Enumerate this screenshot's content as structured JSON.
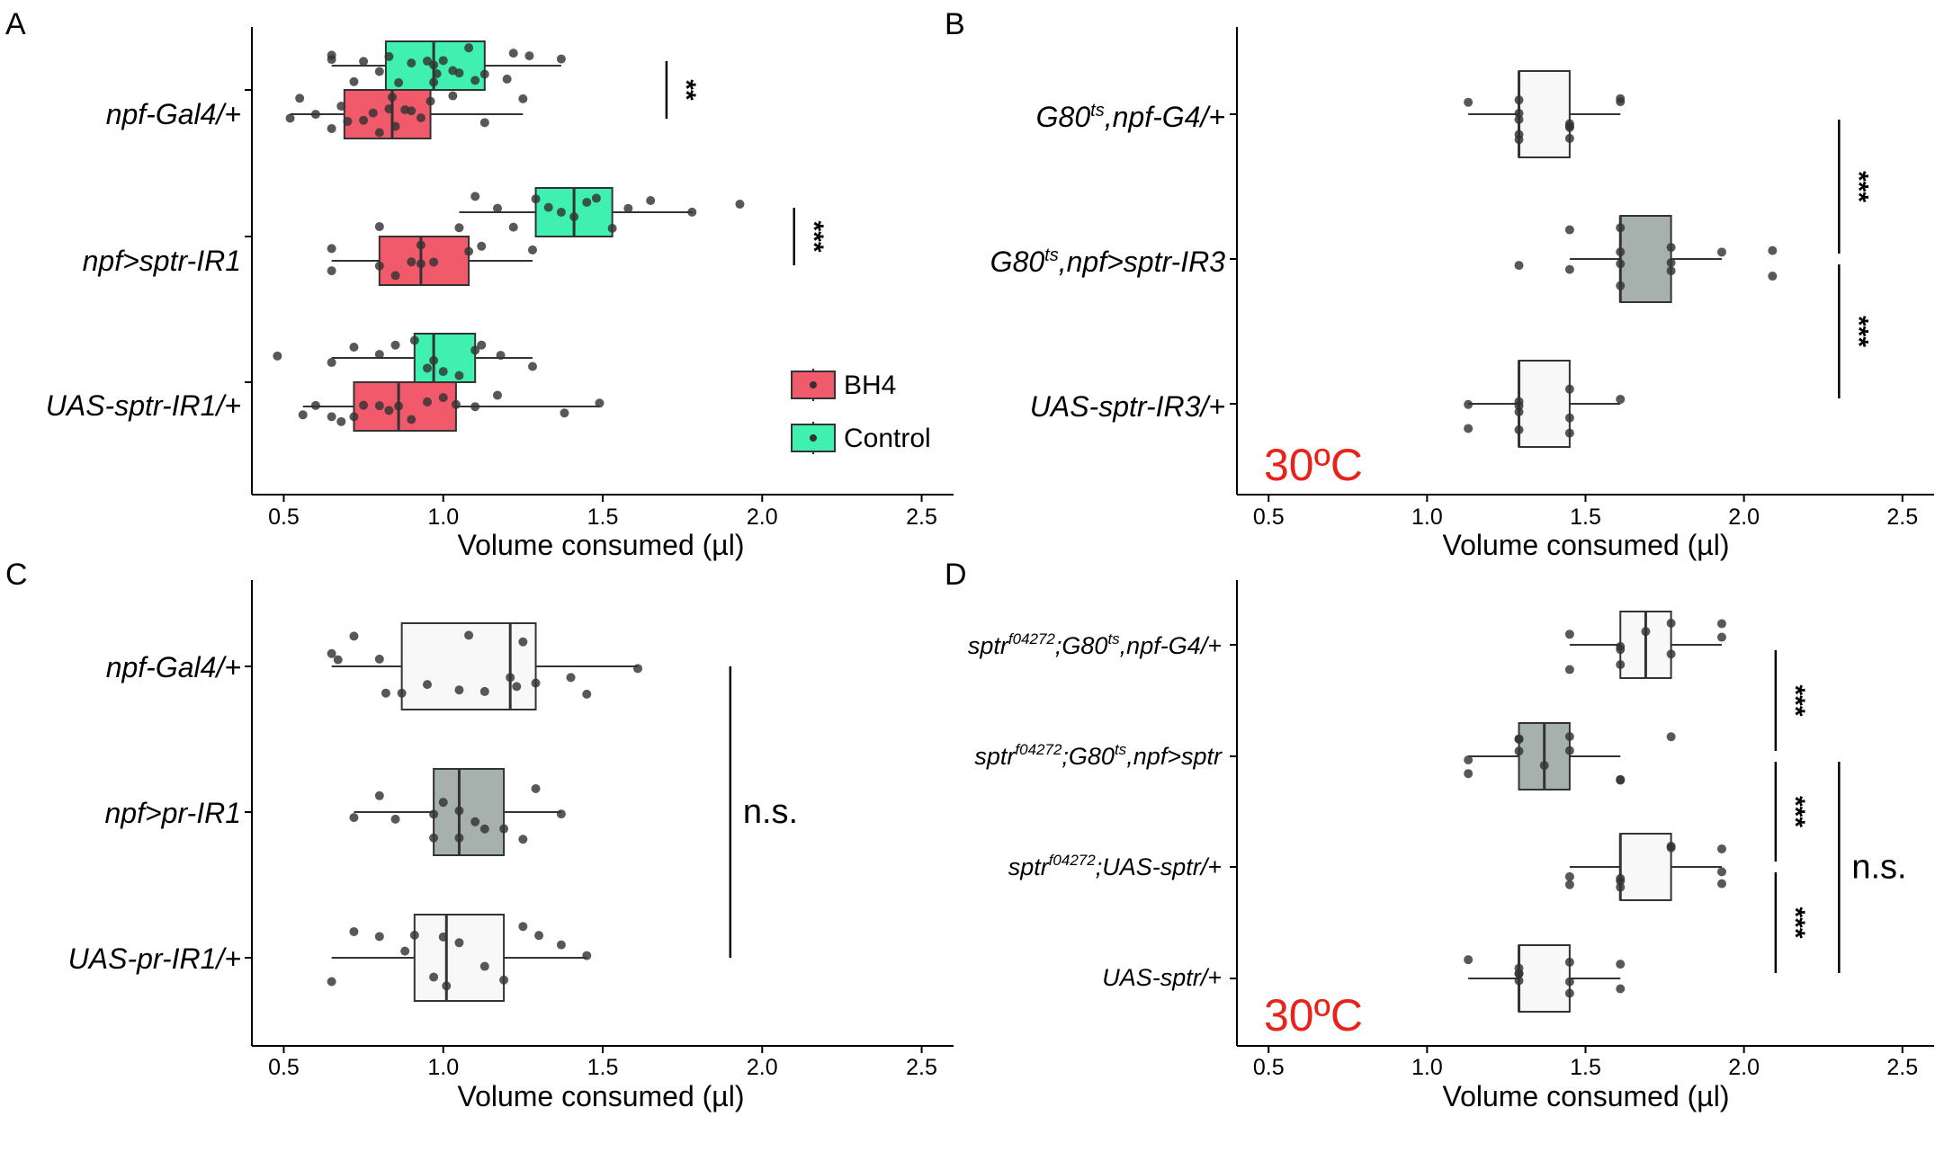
{
  "colors": {
    "bh4": "#f05a6b",
    "control": "#3ff0b0",
    "white_box": "#f8f8f8",
    "grey_box": "#a6b0ad",
    "temp_text": "#e8231a",
    "point": "#333333"
  },
  "chart_data": [
    {
      "panel": "A",
      "type": "box",
      "xlabel": "Volume consumed (µl)",
      "xlim": [
        0.4,
        2.6
      ],
      "xticks": [
        0.5,
        1.0,
        1.5,
        2.0,
        2.5
      ],
      "xtick_labels": [
        "0.5",
        "1.0",
        "1.5",
        "2.0",
        "2.5"
      ],
      "categories": [
        "npf-Gal4/+",
        "npf>sptr-IR1",
        "UAS-sptr-IR1/+"
      ],
      "legend": {
        "position": "right",
        "entries": [
          "BH4",
          "Control"
        ]
      },
      "boxes": [
        {
          "category": 0,
          "group": "Control",
          "min": 0.65,
          "q1": 0.82,
          "median": 0.97,
          "q3": 1.13,
          "max": 1.37,
          "points": [
            0.65,
            0.65,
            0.72,
            0.75,
            0.8,
            0.83,
            0.86,
            0.9,
            0.95,
            0.97,
            0.97,
            0.98,
            1.0,
            1.03,
            1.05,
            1.08,
            1.1,
            1.13,
            1.2,
            1.22,
            1.27,
            1.37
          ]
        },
        {
          "category": 0,
          "group": "BH4",
          "min": 0.52,
          "q1": 0.69,
          "median": 0.84,
          "q3": 0.96,
          "max": 1.25,
          "points": [
            0.52,
            0.55,
            0.6,
            0.65,
            0.68,
            0.7,
            0.75,
            0.78,
            0.8,
            0.83,
            0.84,
            0.85,
            0.88,
            0.9,
            0.93,
            0.96,
            1.03,
            1.13,
            1.25
          ]
        },
        {
          "category": 1,
          "group": "Control",
          "min": 1.05,
          "q1": 1.29,
          "median": 1.41,
          "q3": 1.53,
          "max": 1.78,
          "points": [
            0.8,
            1.05,
            1.1,
            1.17,
            1.22,
            1.29,
            1.33,
            1.37,
            1.41,
            1.45,
            1.48,
            1.53,
            1.58,
            1.65,
            1.78,
            1.93
          ]
        },
        {
          "category": 1,
          "group": "BH4",
          "min": 0.65,
          "q1": 0.8,
          "median": 0.93,
          "q3": 1.08,
          "max": 1.28,
          "points": [
            0.65,
            0.65,
            0.8,
            0.85,
            0.9,
            0.93,
            0.93,
            0.97,
            1.08,
            1.12,
            1.28
          ]
        },
        {
          "category": 2,
          "group": "Control",
          "min": 0.65,
          "q1": 0.91,
          "median": 0.97,
          "q3": 1.1,
          "max": 1.28,
          "points": [
            0.48,
            0.65,
            0.72,
            0.8,
            0.85,
            0.91,
            0.95,
            0.97,
            1.0,
            1.05,
            1.1,
            1.12,
            1.18,
            1.28
          ]
        },
        {
          "category": 2,
          "group": "BH4",
          "min": 0.56,
          "q1": 0.72,
          "median": 0.86,
          "q3": 1.04,
          "max": 1.49,
          "points": [
            0.56,
            0.6,
            0.65,
            0.68,
            0.72,
            0.75,
            0.8,
            0.83,
            0.86,
            0.9,
            0.95,
            1.0,
            1.04,
            1.1,
            1.17,
            1.38,
            1.49
          ]
        }
      ],
      "annotations": [
        {
          "text": "**",
          "x": 1.7,
          "between": [
            0,
            0
          ]
        },
        {
          "text": "***",
          "x": 2.1,
          "between": [
            1,
            1
          ]
        }
      ]
    },
    {
      "panel": "B",
      "type": "box",
      "xlabel": "Volume consumed (µl)",
      "xlim": [
        0.4,
        2.6
      ],
      "xticks": [
        0.5,
        1.0,
        1.5,
        2.0,
        2.5
      ],
      "xtick_labels": [
        "0.5",
        "1.0",
        "1.5",
        "2.0",
        "2.5"
      ],
      "categories": [
        {
          "base": "G80",
          "sup": "ts",
          "rest": ",npf-G4/+"
        },
        {
          "base": "G80",
          "sup": "ts",
          "rest": ",npf>sptr-IR3"
        },
        {
          "base": "UAS-sptr-IR3/+",
          "sup": "",
          "rest": ""
        }
      ],
      "temperature_label": "30ºC",
      "boxes": [
        {
          "category": 0,
          "fill": "white",
          "min": 1.13,
          "q1": 1.29,
          "median": 1.29,
          "q3": 1.45,
          "max": 1.61,
          "points": [
            1.13,
            1.29,
            1.29,
            1.29,
            1.29,
            1.29,
            1.45,
            1.45,
            1.45,
            1.45,
            1.61,
            1.61
          ]
        },
        {
          "category": 1,
          "fill": "grey",
          "min": 1.45,
          "q1": 1.61,
          "median": 1.61,
          "q3": 1.77,
          "max": 1.93,
          "points": [
            1.29,
            1.45,
            1.45,
            1.61,
            1.61,
            1.61,
            1.61,
            1.77,
            1.77,
            1.77,
            1.93,
            2.09,
            2.09
          ]
        },
        {
          "category": 2,
          "fill": "white",
          "min": 1.13,
          "q1": 1.29,
          "median": 1.29,
          "q3": 1.45,
          "max": 1.61,
          "points": [
            1.13,
            1.13,
            1.29,
            1.29,
            1.29,
            1.29,
            1.45,
            1.45,
            1.45,
            1.61
          ]
        }
      ],
      "annotations": [
        {
          "text": "***",
          "x": 2.3,
          "between": [
            0,
            1
          ]
        },
        {
          "text": "***",
          "x": 2.3,
          "between": [
            1,
            2
          ]
        }
      ]
    },
    {
      "panel": "C",
      "type": "box",
      "xlabel": "Volume consumed (µl)",
      "xlim": [
        0.4,
        2.6
      ],
      "xticks": [
        0.5,
        1.0,
        1.5,
        2.0,
        2.5
      ],
      "xtick_labels": [
        "0.5",
        "1.0",
        "1.5",
        "2.0",
        "2.5"
      ],
      "categories": [
        "npf-Gal4/+",
        "npf>pr-IR1",
        "UAS-pr-IR1/+"
      ],
      "boxes": [
        {
          "category": 0,
          "fill": "white",
          "min": 0.65,
          "q1": 0.87,
          "median": 1.21,
          "q3": 1.29,
          "max": 1.61,
          "points": [
            0.65,
            0.67,
            0.72,
            0.8,
            0.82,
            0.87,
            0.95,
            1.05,
            1.08,
            1.13,
            1.21,
            1.23,
            1.25,
            1.29,
            1.4,
            1.45,
            1.61
          ]
        },
        {
          "category": 1,
          "fill": "grey",
          "min": 0.72,
          "q1": 0.97,
          "median": 1.05,
          "q3": 1.19,
          "max": 1.37,
          "points": [
            0.72,
            0.8,
            0.85,
            0.97,
            0.97,
            1.0,
            1.05,
            1.05,
            1.1,
            1.13,
            1.19,
            1.25,
            1.29,
            1.37
          ]
        },
        {
          "category": 2,
          "fill": "white",
          "min": 0.65,
          "q1": 0.91,
          "median": 1.01,
          "q3": 1.19,
          "max": 1.45,
          "points": [
            0.65,
            0.72,
            0.8,
            0.88,
            0.91,
            0.97,
            1.0,
            1.01,
            1.05,
            1.13,
            1.19,
            1.25,
            1.3,
            1.37,
            1.45
          ]
        }
      ],
      "annotations": [
        {
          "text": "n.s.",
          "x": 1.9,
          "between": [
            0,
            2
          ]
        }
      ]
    },
    {
      "panel": "D",
      "type": "box",
      "xlabel": "Volume consumed (µl)",
      "xlim": [
        0.4,
        2.6
      ],
      "xticks": [
        0.5,
        1.0,
        1.5,
        2.0,
        2.5
      ],
      "xtick_labels": [
        "0.5",
        "1.0",
        "1.5",
        "2.0",
        "2.5"
      ],
      "categories": [
        {
          "base": "sptr",
          "sup": "f04272",
          "rest": ";G80",
          "sup2": "ts",
          "rest2": ",npf-G4/+"
        },
        {
          "base": "sptr",
          "sup": "f04272",
          "rest": ";G80",
          "sup2": "ts",
          "rest2": ",npf>sptr"
        },
        {
          "base": "sptr",
          "sup": "f04272",
          "rest": ";UAS-sptr/+",
          "sup2": "",
          "rest2": ""
        },
        {
          "base": "UAS-sptr/+",
          "sup": "",
          "rest": "",
          "sup2": "",
          "rest2": ""
        }
      ],
      "temperature_label": "30ºC",
      "boxes": [
        {
          "category": 0,
          "fill": "white",
          "min": 1.45,
          "q1": 1.61,
          "median": 1.69,
          "q3": 1.77,
          "max": 1.93,
          "points": [
            1.45,
            1.45,
            1.61,
            1.61,
            1.61,
            1.69,
            1.77,
            1.77,
            1.93,
            1.93
          ]
        },
        {
          "category": 1,
          "fill": "grey",
          "min": 1.13,
          "q1": 1.29,
          "median": 1.37,
          "q3": 1.45,
          "max": 1.61,
          "points": [
            1.13,
            1.13,
            1.29,
            1.29,
            1.29,
            1.37,
            1.45,
            1.45,
            1.61,
            1.61,
            1.77
          ]
        },
        {
          "category": 2,
          "fill": "white",
          "min": 1.45,
          "q1": 1.61,
          "median": 1.61,
          "q3": 1.77,
          "max": 1.93,
          "points": [
            1.45,
            1.45,
            1.61,
            1.61,
            1.61,
            1.77,
            1.77,
            1.93,
            1.93,
            1.93
          ]
        },
        {
          "category": 3,
          "fill": "white",
          "min": 1.13,
          "q1": 1.29,
          "median": 1.29,
          "q3": 1.45,
          "max": 1.61,
          "points": [
            1.13,
            1.29,
            1.29,
            1.29,
            1.29,
            1.45,
            1.45,
            1.45,
            1.61,
            1.61
          ]
        }
      ],
      "annotations": [
        {
          "text": "***",
          "x": 2.1,
          "between": [
            0,
            1
          ]
        },
        {
          "text": "***",
          "x": 2.1,
          "between": [
            1,
            2
          ]
        },
        {
          "text": "***",
          "x": 2.1,
          "between": [
            2,
            3
          ]
        },
        {
          "text": "n.s.",
          "x": 2.3,
          "between": [
            1,
            3
          ]
        }
      ]
    }
  ]
}
